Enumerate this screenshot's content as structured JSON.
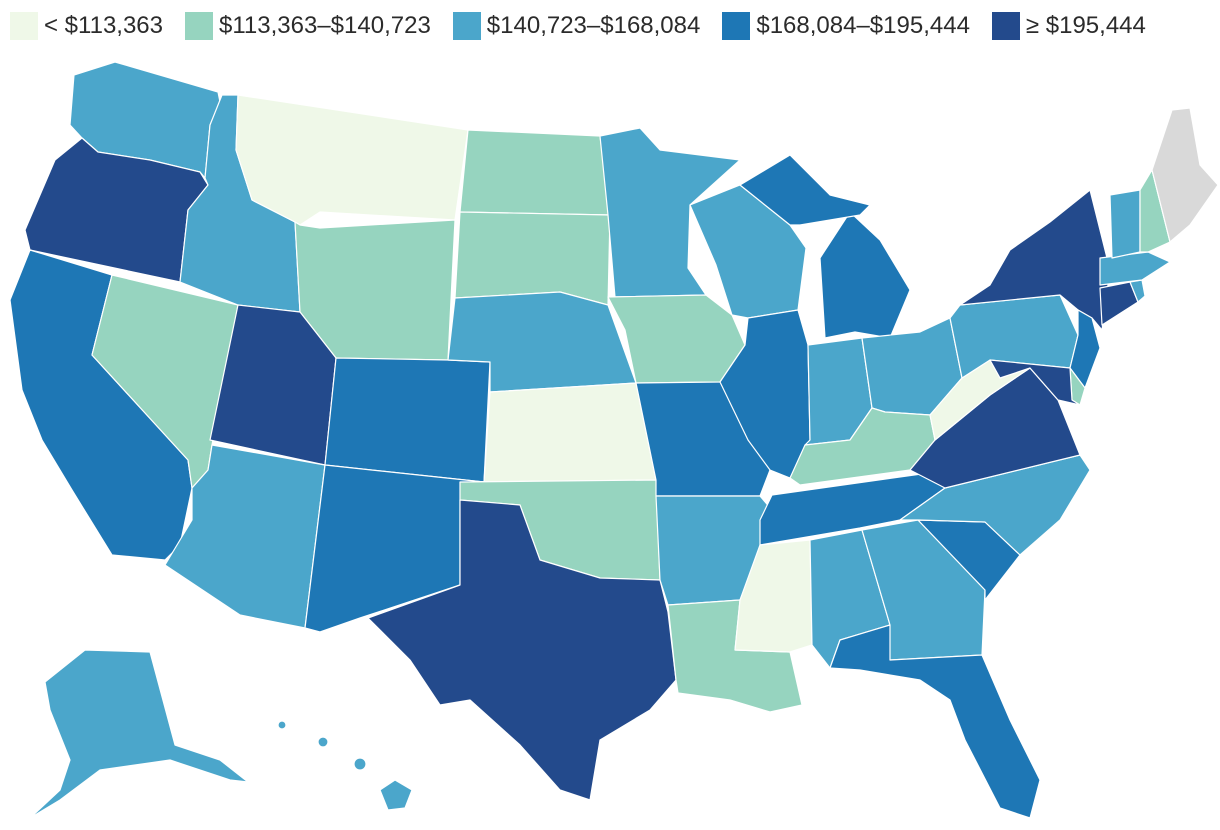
{
  "legend": {
    "bins": [
      {
        "label": "< $113,363",
        "color": "#eff8e8"
      },
      {
        "label": "$113,363–$140,723",
        "color": "#96d4bf"
      },
      {
        "label": "$140,723–$168,084",
        "color": "#4ba6cb"
      },
      {
        "label": "$168,084–$195,444",
        "color": "#1e77b5"
      },
      {
        "label": "≥ $195,444",
        "color": "#234a8c"
      }
    ]
  },
  "no_data_color": "#d9d9d9",
  "states": {
    "WA": 2,
    "OR": 4,
    "CA": 3,
    "NV": 1,
    "ID": 2,
    "MT": 0,
    "WY": 1,
    "UT": 4,
    "AZ": 2,
    "CO": 3,
    "NM": 3,
    "ND": 1,
    "SD": 1,
    "NE": 2,
    "KS": 0,
    "OK": 1,
    "TX": 4,
    "MN": 2,
    "IA": 1,
    "MO": 3,
    "AR": 2,
    "LA": 1,
    "WI": 2,
    "IL": 3,
    "MI": 3,
    "IN": 2,
    "OH": 2,
    "KY": 1,
    "TN": 3,
    "MS": 0,
    "AL": 2,
    "GA": 2,
    "FL": 3,
    "SC": 3,
    "NC": 2,
    "VA": 4,
    "WV": 0,
    "PA": 2,
    "NY": 4,
    "NJ": 3,
    "DE": 1,
    "MD": 4,
    "CT": 4,
    "RI": 2,
    "MA": 2,
    "VT": 2,
    "NH": 1,
    "ME": -1,
    "AK": 2,
    "HI": 2
  }
}
